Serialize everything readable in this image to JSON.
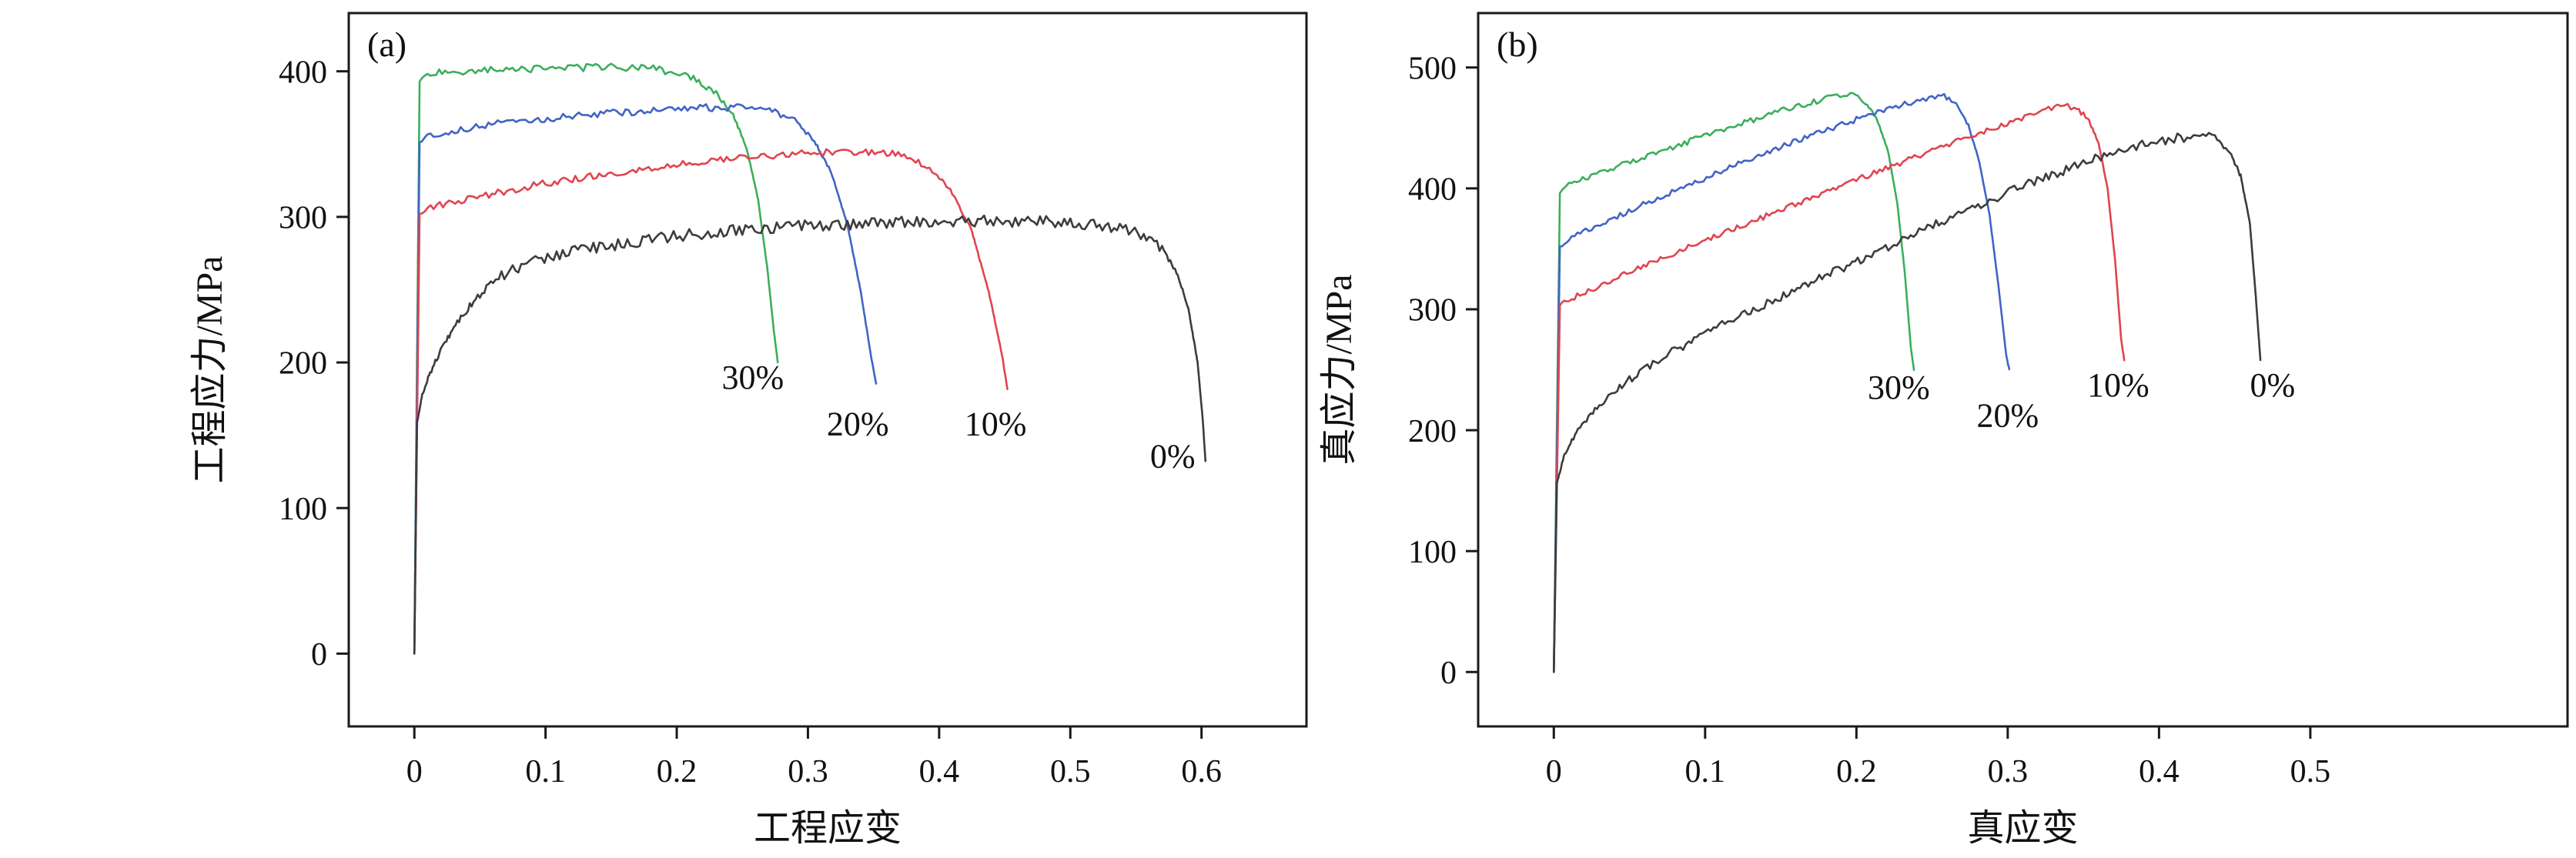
{
  "figure": {
    "background": "#ffffff"
  },
  "chart_data": [
    {
      "type": "line",
      "panel_label": "(a)",
      "xlabel": "工程应变",
      "ylabel": "工程应力/MPa",
      "xlim": [
        -0.05,
        0.68
      ],
      "ylim": [
        -50,
        440
      ],
      "grid": false,
      "legend": "inline-annotations",
      "xticks": {
        "values": [
          0,
          0.1,
          0.2,
          0.3,
          0.4,
          0.5,
          0.6
        ],
        "labels": [
          "0",
          "0.1",
          "0.2",
          "0.3",
          "0.4",
          "0.5",
          "0.6"
        ]
      },
      "yticks": {
        "values": [
          0,
          100,
          200,
          300,
          400
        ],
        "labels": [
          "0",
          "100",
          "200",
          "300",
          "400"
        ]
      },
      "series": [
        {
          "name": "30%",
          "color": "#3cae5c",
          "noise": 2.5,
          "points": [
            [
              0,
              0
            ],
            [
              0.002,
              200
            ],
            [
              0.004,
              393
            ],
            [
              0.01,
              398
            ],
            [
              0.03,
              400
            ],
            [
              0.07,
              401
            ],
            [
              0.11,
              402
            ],
            [
              0.15,
              403
            ],
            [
              0.18,
              402
            ],
            [
              0.2,
              399
            ],
            [
              0.215,
              394
            ],
            [
              0.23,
              385
            ],
            [
              0.243,
              370
            ],
            [
              0.253,
              348
            ],
            [
              0.262,
              312
            ],
            [
              0.269,
              265
            ],
            [
              0.274,
              222
            ],
            [
              0.277,
              200
            ]
          ]
        },
        {
          "name": "20%",
          "color": "#4164c4",
          "noise": 2.5,
          "points": [
            [
              0,
              0
            ],
            [
              0.002,
              180
            ],
            [
              0.004,
              351
            ],
            [
              0.01,
              356
            ],
            [
              0.04,
              361
            ],
            [
              0.08,
              366
            ],
            [
              0.13,
              370
            ],
            [
              0.18,
              373
            ],
            [
              0.22,
              375
            ],
            [
              0.255,
              375
            ],
            [
              0.275,
              372
            ],
            [
              0.292,
              365
            ],
            [
              0.305,
              352
            ],
            [
              0.318,
              330
            ],
            [
              0.33,
              295
            ],
            [
              0.34,
              250
            ],
            [
              0.348,
              205
            ],
            [
              0.352,
              185
            ]
          ]
        },
        {
          "name": "10%",
          "color": "#e0444f",
          "noise": 2.5,
          "points": [
            [
              0,
              0
            ],
            [
              0.002,
              150
            ],
            [
              0.004,
              302
            ],
            [
              0.01,
              306
            ],
            [
              0.05,
              314
            ],
            [
              0.1,
              323
            ],
            [
              0.15,
              330
            ],
            [
              0.2,
              336
            ],
            [
              0.25,
              341
            ],
            [
              0.3,
              344
            ],
            [
              0.335,
              345
            ],
            [
              0.36,
              344
            ],
            [
              0.38,
              340
            ],
            [
              0.397,
              331
            ],
            [
              0.41,
              317
            ],
            [
              0.425,
              290
            ],
            [
              0.438,
              248
            ],
            [
              0.448,
              205
            ],
            [
              0.452,
              182
            ]
          ]
        },
        {
          "name": "0%",
          "color": "#3c3c3c",
          "noise": 4,
          "points": [
            [
              0,
              0
            ],
            [
              0.002,
              158
            ],
            [
              0.006,
              178
            ],
            [
              0.012,
              193
            ],
            [
              0.02,
              208
            ],
            [
              0.03,
              224
            ],
            [
              0.045,
              242
            ],
            [
              0.06,
              256
            ],
            [
              0.075,
              264
            ],
            [
              0.09,
              269
            ],
            [
              0.12,
              276
            ],
            [
              0.16,
              282
            ],
            [
              0.2,
              287
            ],
            [
              0.25,
              291
            ],
            [
              0.3,
              294
            ],
            [
              0.36,
              296
            ],
            [
              0.42,
              297
            ],
            [
              0.47,
              297
            ],
            [
              0.5,
              296
            ],
            [
              0.52,
              295
            ],
            [
              0.54,
              292
            ],
            [
              0.556,
              287
            ],
            [
              0.57,
              278
            ],
            [
              0.581,
              262
            ],
            [
              0.59,
              237
            ],
            [
              0.597,
              200
            ],
            [
              0.601,
              160
            ],
            [
              0.603,
              132
            ]
          ]
        }
      ],
      "annotations": [
        {
          "text": "30%",
          "x": 0.258,
          "y": 182
        },
        {
          "text": "20%",
          "x": 0.338,
          "y": 150
        },
        {
          "text": "10%",
          "x": 0.443,
          "y": 150
        },
        {
          "text": "0%",
          "x": 0.578,
          "y": 128
        }
      ]
    },
    {
      "type": "line",
      "panel_label": "(b)",
      "xlabel": "真应变",
      "ylabel": "真应力/MPa",
      "xlim": [
        -0.05,
        0.67
      ],
      "ylim": [
        -45,
        545
      ],
      "grid": false,
      "legend": "inline-annotations",
      "xticks": {
        "values": [
          0,
          0.1,
          0.2,
          0.3,
          0.4,
          0.5
        ],
        "labels": [
          "0",
          "0.1",
          "0.2",
          "0.3",
          "0.4",
          "0.5"
        ]
      },
      "yticks": {
        "values": [
          0,
          100,
          200,
          300,
          400,
          500
        ],
        "labels": [
          "0",
          "100",
          "200",
          "300",
          "400",
          "500"
        ]
      },
      "series": [
        {
          "name": "30%",
          "color": "#3cae5c",
          "noise": 2.5,
          "points": [
            [
              0,
              0
            ],
            [
              0.002,
              200
            ],
            [
              0.004,
              396
            ],
            [
              0.01,
              403
            ],
            [
              0.03,
              413
            ],
            [
              0.06,
              426
            ],
            [
              0.09,
              439
            ],
            [
              0.12,
              452
            ],
            [
              0.15,
              464
            ],
            [
              0.17,
              471
            ],
            [
              0.185,
              476
            ],
            [
              0.196,
              478
            ],
            [
              0.206,
              471
            ],
            [
              0.214,
              456
            ],
            [
              0.221,
              430
            ],
            [
              0.227,
              388
            ],
            [
              0.232,
              330
            ],
            [
              0.236,
              268
            ],
            [
              0.238,
              250
            ]
          ]
        },
        {
          "name": "20%",
          "color": "#4164c4",
          "noise": 2.5,
          "points": [
            [
              0,
              0
            ],
            [
              0.002,
              180
            ],
            [
              0.004,
              352
            ],
            [
              0.01,
              358
            ],
            [
              0.04,
              376
            ],
            [
              0.08,
              398
            ],
            [
              0.12,
              419
            ],
            [
              0.16,
              439
            ],
            [
              0.2,
              457
            ],
            [
              0.23,
              469
            ],
            [
              0.25,
              475
            ],
            [
              0.258,
              476
            ],
            [
              0.266,
              469
            ],
            [
              0.274,
              452
            ],
            [
              0.281,
              423
            ],
            [
              0.288,
              378
            ],
            [
              0.294,
              318
            ],
            [
              0.299,
              262
            ],
            [
              0.301,
              250
            ]
          ]
        },
        {
          "name": "10%",
          "color": "#e0444f",
          "noise": 2.5,
          "points": [
            [
              0,
              0
            ],
            [
              0.002,
              150
            ],
            [
              0.004,
              303
            ],
            [
              0.01,
              308
            ],
            [
              0.05,
              331
            ],
            [
              0.1,
              357
            ],
            [
              0.15,
              382
            ],
            [
              0.2,
              407
            ],
            [
              0.25,
              431
            ],
            [
              0.29,
              450
            ],
            [
              0.315,
              461
            ],
            [
              0.333,
              468
            ],
            [
              0.344,
              467
            ],
            [
              0.353,
              458
            ],
            [
              0.36,
              438
            ],
            [
              0.366,
              400
            ],
            [
              0.371,
              340
            ],
            [
              0.375,
              275
            ],
            [
              0.377,
              258
            ]
          ]
        },
        {
          "name": "0%",
          "color": "#3c3c3c",
          "noise": 4,
          "points": [
            [
              0,
              0
            ],
            [
              0.002,
              156
            ],
            [
              0.007,
              180
            ],
            [
              0.016,
              200
            ],
            [
              0.03,
              220
            ],
            [
              0.045,
              237
            ],
            [
              0.06,
              251
            ],
            [
              0.08,
              266
            ],
            [
              0.1,
              280
            ],
            [
              0.13,
              298
            ],
            [
              0.17,
              322
            ],
            [
              0.21,
              345
            ],
            [
              0.26,
              375
            ],
            [
              0.31,
              402
            ],
            [
              0.35,
              421
            ],
            [
              0.385,
              435
            ],
            [
              0.41,
              441
            ],
            [
              0.425,
              444
            ],
            [
              0.437,
              441
            ],
            [
              0.447,
              430
            ],
            [
              0.454,
              410
            ],
            [
              0.46,
              372
            ],
            [
              0.464,
              310
            ],
            [
              0.467,
              258
            ]
          ]
        }
      ],
      "annotations": [
        {
          "text": "30%",
          "x": 0.228,
          "y": 226
        },
        {
          "text": "20%",
          "x": 0.3,
          "y": 203
        },
        {
          "text": "10%",
          "x": 0.373,
          "y": 228
        },
        {
          "text": "0%",
          "x": 0.475,
          "y": 228
        }
      ]
    }
  ]
}
